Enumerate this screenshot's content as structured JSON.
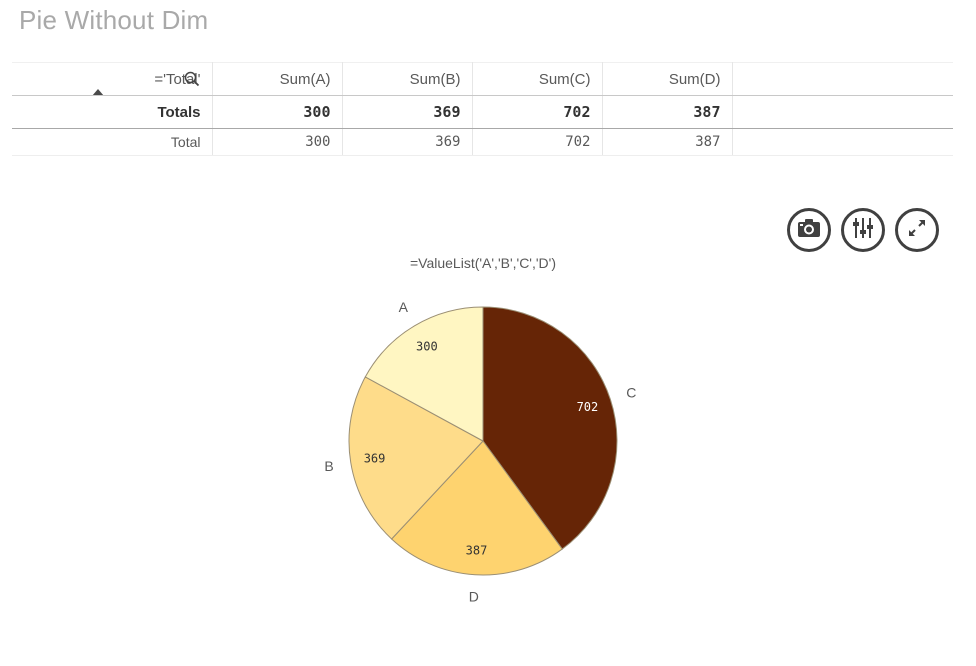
{
  "page": {
    "title": "Pie Without Dim"
  },
  "table": {
    "dim_header": "='Total'",
    "columns": [
      "Sum(A)",
      "Sum(B)",
      "Sum(C)",
      "Sum(D)"
    ],
    "totals": {
      "label": "Totals",
      "values": [
        "300",
        "369",
        "702",
        "387"
      ]
    },
    "rows": [
      {
        "label": "Total",
        "values": [
          "300",
          "369",
          "702",
          "387"
        ]
      }
    ]
  },
  "toolbar": {
    "snapshot_icon": "camera-icon",
    "exploration_icon": "sliders-icon",
    "fullscreen_icon": "expand-icon"
  },
  "chart_data": {
    "type": "pie",
    "title": "=ValueList('A','B','C','D')",
    "slices": [
      {
        "label": "C",
        "value": 702,
        "color": "#662506"
      },
      {
        "label": "D",
        "value": 387,
        "color": "#fed36f"
      },
      {
        "label": "B",
        "value": 369,
        "color": "#fedc8a"
      },
      {
        "label": "A",
        "value": 300,
        "color": "#fff6c2"
      }
    ]
  }
}
